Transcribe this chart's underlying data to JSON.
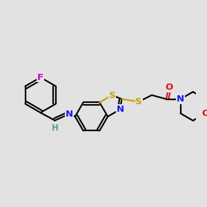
{
  "bg_color": "#e2e2e2",
  "black": "#000000",
  "blue": "#1a1aee",
  "yellow": "#c8a000",
  "teal": "#5a9898",
  "red": "#dd1111",
  "magenta": "#cc00cc",
  "bond_lw": 1.6,
  "label_fs": 9.5,
  "xlim": [
    0,
    300
  ],
  "ylim": [
    0,
    300
  ]
}
